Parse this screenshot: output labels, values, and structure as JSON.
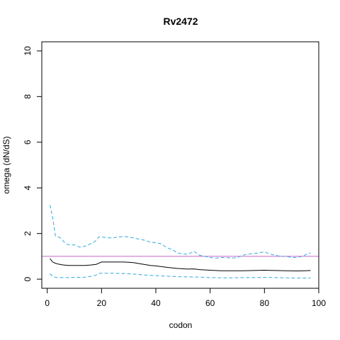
{
  "chart_data": {
    "type": "line",
    "title": "Rv2472",
    "xlabel": "codon",
    "ylabel": "omega (dN/dS)",
    "xlim": [
      -2,
      100
    ],
    "ylim": [
      -0.4,
      10.4
    ],
    "x_ticks": [
      0,
      20,
      40,
      60,
      80,
      100
    ],
    "y_ticks": [
      0,
      2,
      4,
      6,
      8,
      10
    ],
    "grid": false,
    "reference_line": {
      "y": 1,
      "color": "#cc66cc"
    },
    "colors": {
      "estimate": "#000000",
      "interval": "#33aadd"
    },
    "series": [
      {
        "style": "solid",
        "x": [
          1,
          2,
          3,
          4,
          5,
          6,
          8,
          10,
          12,
          14,
          16,
          18,
          19,
          20,
          24,
          28,
          30,
          32,
          34,
          36,
          38,
          40,
          44,
          48,
          52,
          54,
          56,
          60,
          64,
          68,
          72,
          76,
          80,
          84,
          88,
          92,
          95,
          97
        ],
        "values": [
          0.9,
          0.75,
          0.7,
          0.66,
          0.64,
          0.62,
          0.6,
          0.6,
          0.6,
          0.6,
          0.62,
          0.65,
          0.7,
          0.75,
          0.75,
          0.75,
          0.74,
          0.72,
          0.68,
          0.64,
          0.6,
          0.58,
          0.52,
          0.47,
          0.44,
          0.45,
          0.42,
          0.39,
          0.37,
          0.37,
          0.37,
          0.38,
          0.39,
          0.38,
          0.37,
          0.36,
          0.37,
          0.38
        ]
      },
      {
        "style": "dashed",
        "x": [
          1,
          2,
          3,
          4,
          5,
          6,
          7,
          8,
          10,
          12,
          14,
          16,
          17,
          18,
          19,
          20,
          22,
          24,
          26,
          28,
          30,
          32,
          34,
          36,
          38,
          40,
          42,
          44,
          46,
          48,
          50,
          52,
          54,
          55,
          56,
          58,
          60,
          62,
          64,
          66,
          68,
          70,
          72,
          74,
          76,
          78,
          80,
          82,
          84,
          86,
          88,
          90,
          92,
          94,
          96,
          97
        ],
        "values": [
          3.25,
          2.7,
          1.9,
          1.85,
          1.8,
          1.65,
          1.55,
          1.5,
          1.5,
          1.4,
          1.45,
          1.55,
          1.6,
          1.7,
          1.85,
          1.85,
          1.82,
          1.8,
          1.85,
          1.87,
          1.85,
          1.8,
          1.75,
          1.7,
          1.62,
          1.6,
          1.55,
          1.38,
          1.3,
          1.15,
          1.1,
          1.1,
          1.22,
          1.15,
          1.05,
          1.0,
          0.95,
          0.92,
          0.95,
          0.95,
          0.92,
          0.95,
          1.05,
          1.1,
          1.12,
          1.15,
          1.2,
          1.1,
          1.05,
          1.0,
          1.0,
          0.95,
          0.95,
          1.0,
          1.12,
          1.15
        ]
      },
      {
        "style": "dashed",
        "x": [
          1,
          2,
          3,
          4,
          6,
          8,
          10,
          12,
          14,
          16,
          18,
          19,
          20,
          24,
          28,
          32,
          36,
          40,
          44,
          48,
          52,
          56,
          60,
          64,
          68,
          72,
          76,
          80,
          84,
          88,
          92,
          97
        ],
        "values": [
          0.25,
          0.12,
          0.08,
          0.07,
          0.07,
          0.07,
          0.08,
          0.08,
          0.09,
          0.12,
          0.18,
          0.25,
          0.26,
          0.26,
          0.25,
          0.22,
          0.18,
          0.15,
          0.13,
          0.11,
          0.1,
          0.09,
          0.07,
          0.06,
          0.06,
          0.07,
          0.07,
          0.08,
          0.07,
          0.06,
          0.05,
          0.05
        ]
      }
    ]
  }
}
